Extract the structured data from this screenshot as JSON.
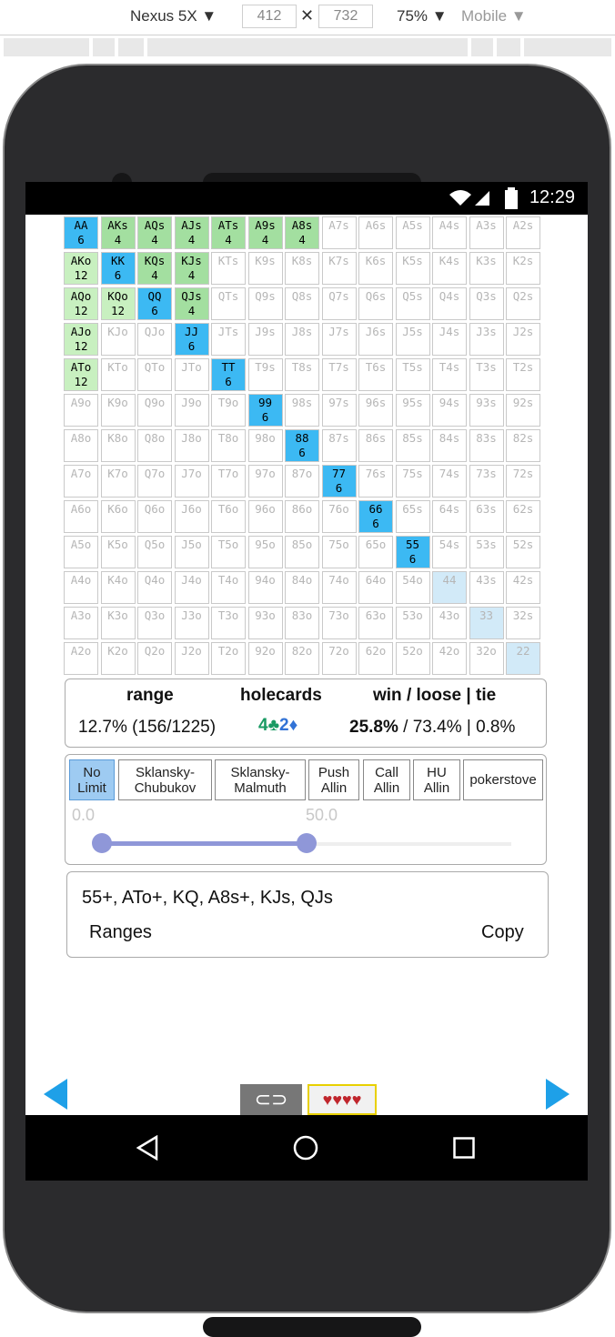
{
  "devtools": {
    "device": "Nexus 5X ▼",
    "width": "412",
    "height": "732",
    "zoom": "75% ▼",
    "mode": "Mobile ▼"
  },
  "status": {
    "time": "12:29"
  },
  "grid": [
    [
      {
        "t": "AA",
        "n": "6",
        "c": "blue"
      },
      {
        "t": "AKs",
        "n": "4",
        "c": "green"
      },
      {
        "t": "AQs",
        "n": "4",
        "c": "green"
      },
      {
        "t": "AJs",
        "n": "4",
        "c": "green"
      },
      {
        "t": "ATs",
        "n": "4",
        "c": "green"
      },
      {
        "t": "A9s",
        "n": "4",
        "c": "green"
      },
      {
        "t": "A8s",
        "n": "4",
        "c": "green"
      },
      {
        "t": "A7s"
      },
      {
        "t": "A6s"
      },
      {
        "t": "A5s"
      },
      {
        "t": "A4s"
      },
      {
        "t": "A3s"
      },
      {
        "t": "A2s"
      }
    ],
    [
      {
        "t": "AKo",
        "n": "12",
        "c": "lgreen"
      },
      {
        "t": "KK",
        "n": "6",
        "c": "blue"
      },
      {
        "t": "KQs",
        "n": "4",
        "c": "green"
      },
      {
        "t": "KJs",
        "n": "4",
        "c": "green"
      },
      {
        "t": "KTs"
      },
      {
        "t": "K9s"
      },
      {
        "t": "K8s"
      },
      {
        "t": "K7s"
      },
      {
        "t": "K6s"
      },
      {
        "t": "K5s"
      },
      {
        "t": "K4s"
      },
      {
        "t": "K3s"
      },
      {
        "t": "K2s"
      }
    ],
    [
      {
        "t": "AQo",
        "n": "12",
        "c": "lgreen"
      },
      {
        "t": "KQo",
        "n": "12",
        "c": "lgreen"
      },
      {
        "t": "QQ",
        "n": "6",
        "c": "blue"
      },
      {
        "t": "QJs",
        "n": "4",
        "c": "green"
      },
      {
        "t": "QTs"
      },
      {
        "t": "Q9s"
      },
      {
        "t": "Q8s"
      },
      {
        "t": "Q7s"
      },
      {
        "t": "Q6s"
      },
      {
        "t": "Q5s"
      },
      {
        "t": "Q4s"
      },
      {
        "t": "Q3s"
      },
      {
        "t": "Q2s"
      }
    ],
    [
      {
        "t": "AJo",
        "n": "12",
        "c": "lgreen"
      },
      {
        "t": "KJo"
      },
      {
        "t": "QJo"
      },
      {
        "t": "JJ",
        "n": "6",
        "c": "blue"
      },
      {
        "t": "JTs"
      },
      {
        "t": "J9s"
      },
      {
        "t": "J8s"
      },
      {
        "t": "J7s"
      },
      {
        "t": "J6s"
      },
      {
        "t": "J5s"
      },
      {
        "t": "J4s"
      },
      {
        "t": "J3s"
      },
      {
        "t": "J2s"
      }
    ],
    [
      {
        "t": "ATo",
        "n": "12",
        "c": "lgreen"
      },
      {
        "t": "KTo"
      },
      {
        "t": "QTo"
      },
      {
        "t": "JTo"
      },
      {
        "t": "TT",
        "n": "6",
        "c": "blue"
      },
      {
        "t": "T9s"
      },
      {
        "t": "T8s"
      },
      {
        "t": "T7s"
      },
      {
        "t": "T6s"
      },
      {
        "t": "T5s"
      },
      {
        "t": "T4s"
      },
      {
        "t": "T3s"
      },
      {
        "t": "T2s"
      }
    ],
    [
      {
        "t": "A9o"
      },
      {
        "t": "K9o"
      },
      {
        "t": "Q9o"
      },
      {
        "t": "J9o"
      },
      {
        "t": "T9o"
      },
      {
        "t": "99",
        "n": "6",
        "c": "blue"
      },
      {
        "t": "98s"
      },
      {
        "t": "97s"
      },
      {
        "t": "96s"
      },
      {
        "t": "95s"
      },
      {
        "t": "94s"
      },
      {
        "t": "93s"
      },
      {
        "t": "92s"
      }
    ],
    [
      {
        "t": "A8o"
      },
      {
        "t": "K8o"
      },
      {
        "t": "Q8o"
      },
      {
        "t": "J8o"
      },
      {
        "t": "T8o"
      },
      {
        "t": "98o"
      },
      {
        "t": "88",
        "n": "6",
        "c": "blue"
      },
      {
        "t": "87s"
      },
      {
        "t": "86s"
      },
      {
        "t": "85s"
      },
      {
        "t": "84s"
      },
      {
        "t": "83s"
      },
      {
        "t": "82s"
      }
    ],
    [
      {
        "t": "A7o"
      },
      {
        "t": "K7o"
      },
      {
        "t": "Q7o"
      },
      {
        "t": "J7o"
      },
      {
        "t": "T7o"
      },
      {
        "t": "97o"
      },
      {
        "t": "87o"
      },
      {
        "t": "77",
        "n": "6",
        "c": "blue"
      },
      {
        "t": "76s"
      },
      {
        "t": "75s"
      },
      {
        "t": "74s"
      },
      {
        "t": "73s"
      },
      {
        "t": "72s"
      }
    ],
    [
      {
        "t": "A6o"
      },
      {
        "t": "K6o"
      },
      {
        "t": "Q6o"
      },
      {
        "t": "J6o"
      },
      {
        "t": "T6o"
      },
      {
        "t": "96o"
      },
      {
        "t": "86o"
      },
      {
        "t": "76o"
      },
      {
        "t": "66",
        "n": "6",
        "c": "blue"
      },
      {
        "t": "65s"
      },
      {
        "t": "64s"
      },
      {
        "t": "63s"
      },
      {
        "t": "62s"
      }
    ],
    [
      {
        "t": "A5o"
      },
      {
        "t": "K5o"
      },
      {
        "t": "Q5o"
      },
      {
        "t": "J5o"
      },
      {
        "t": "T5o"
      },
      {
        "t": "95o"
      },
      {
        "t": "85o"
      },
      {
        "t": "75o"
      },
      {
        "t": "65o"
      },
      {
        "t": "55",
        "n": "6",
        "c": "blue"
      },
      {
        "t": "54s"
      },
      {
        "t": "53s"
      },
      {
        "t": "52s"
      }
    ],
    [
      {
        "t": "A4o"
      },
      {
        "t": "K4o"
      },
      {
        "t": "Q4o"
      },
      {
        "t": "J4o"
      },
      {
        "t": "T4o"
      },
      {
        "t": "94o"
      },
      {
        "t": "84o"
      },
      {
        "t": "74o"
      },
      {
        "t": "64o"
      },
      {
        "t": "54o"
      },
      {
        "t": "44",
        "c": "pale"
      },
      {
        "t": "43s"
      },
      {
        "t": "42s"
      }
    ],
    [
      {
        "t": "A3o"
      },
      {
        "t": "K3o"
      },
      {
        "t": "Q3o"
      },
      {
        "t": "J3o"
      },
      {
        "t": "T3o"
      },
      {
        "t": "93o"
      },
      {
        "t": "83o"
      },
      {
        "t": "73o"
      },
      {
        "t": "63o"
      },
      {
        "t": "53o"
      },
      {
        "t": "43o"
      },
      {
        "t": "33",
        "c": "pale"
      },
      {
        "t": "32s"
      }
    ],
    [
      {
        "t": "A2o"
      },
      {
        "t": "K2o"
      },
      {
        "t": "Q2o"
      },
      {
        "t": "J2o"
      },
      {
        "t": "T2o"
      },
      {
        "t": "92o"
      },
      {
        "t": "82o"
      },
      {
        "t": "72o"
      },
      {
        "t": "62o"
      },
      {
        "t": "52o"
      },
      {
        "t": "42o"
      },
      {
        "t": "32o"
      },
      {
        "t": "22",
        "c": "pale"
      }
    ]
  ],
  "info": {
    "range_header": "range",
    "holecards_header": "holecards",
    "result_header": "win / loose | tie",
    "range_value": "12.7% (156/1225)",
    "hc1": "4♣",
    "hc2": "2♦",
    "win": "25.8%",
    "rest": " / 73.4% | 0.8%"
  },
  "tabs": [
    {
      "label": "No Limit",
      "active": true
    },
    {
      "label": "Sklansky-Chubukov"
    },
    {
      "label": "Sklansky-Malmuth"
    },
    {
      "label": "Push Allin"
    },
    {
      "label": "Call Allin"
    },
    {
      "label": "HU Allin"
    },
    {
      "label": "pokerstove"
    }
  ],
  "slider": {
    "min_label": "0.0",
    "max_label": "50.0",
    "range_percent": 50.0
  },
  "range_text": "55+, ATo+, KQ, A8s+, KJs, QJs",
  "links": {
    "ranges": "Ranges",
    "copy": "Copy"
  },
  "colors": {
    "blue": "#3cb9f3",
    "green": "#a3dfa0",
    "light_green": "#c8f0c0",
    "pale_blue": "#d2eaf8",
    "accent": "#1ea0e8"
  }
}
